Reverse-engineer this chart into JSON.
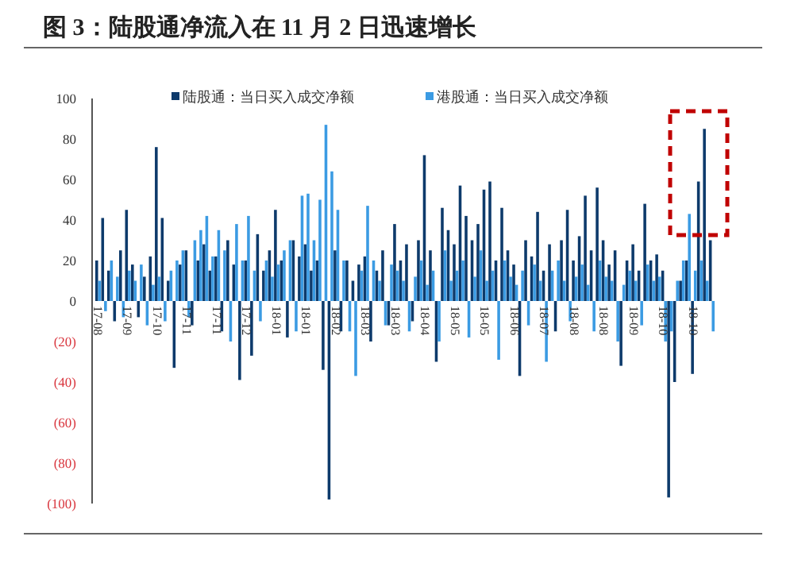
{
  "chart_data": {
    "type": "bar",
    "title": "图 3：陆股通净流入在 11 月 2 日迅速增长",
    "categories": [
      "17-08",
      null,
      null,
      null,
      null,
      "17-09",
      null,
      null,
      null,
      null,
      "17-10",
      null,
      null,
      null,
      null,
      "17-11",
      null,
      null,
      null,
      null,
      "17-11",
      null,
      null,
      null,
      null,
      "17-12",
      null,
      null,
      null,
      null,
      "18-01",
      null,
      null,
      null,
      null,
      "18-01",
      null,
      null,
      null,
      null,
      "18-02",
      null,
      null,
      null,
      null,
      "18-03",
      null,
      null,
      null,
      null,
      "18-03",
      null,
      null,
      null,
      null,
      "18-04",
      null,
      null,
      null,
      null,
      "18-05",
      null,
      null,
      null,
      null,
      "18-05",
      null,
      null,
      null,
      null,
      "18-06",
      null,
      null,
      null,
      null,
      "18-07",
      null,
      null,
      null,
      null,
      "18-08",
      null,
      null,
      null,
      null,
      "18-08",
      null,
      null,
      null,
      null,
      "18-09",
      null,
      null,
      null,
      null,
      "18-10",
      null,
      null,
      null,
      null,
      "18-10",
      null,
      null,
      null
    ],
    "series": [
      {
        "name": "陆股通：当日买入成交净额",
        "color": "#0d3a6b",
        "values": [
          20,
          41,
          15,
          -10,
          25,
          45,
          18,
          -8,
          12,
          22,
          76,
          41,
          10,
          -33,
          18,
          25,
          -12,
          20,
          28,
          15,
          22,
          -15,
          30,
          18,
          -39,
          20,
          -27,
          33,
          15,
          25,
          45,
          20,
          -18,
          30,
          22,
          28,
          15,
          20,
          -34,
          -98,
          25,
          -15,
          20,
          10,
          18,
          22,
          -20,
          15,
          25,
          -12,
          38,
          20,
          28,
          -10,
          30,
          72,
          25,
          -30,
          46,
          35,
          28,
          57,
          42,
          30,
          38,
          55,
          59,
          20,
          46,
          25,
          18,
          -37,
          30,
          22,
          44,
          15,
          28,
          -15,
          30,
          45,
          20,
          32,
          52,
          25,
          56,
          30,
          18,
          25,
          -32,
          20,
          28,
          15,
          48,
          20,
          23,
          15,
          -97,
          -40,
          10,
          20,
          -36,
          59,
          85,
          30
        ]
      },
      {
        "name": "港股通：当日买入成交净额",
        "color": "#3b9be3",
        "values": [
          10,
          -5,
          20,
          12,
          -8,
          15,
          10,
          18,
          -12,
          8,
          12,
          -10,
          15,
          20,
          25,
          -8,
          30,
          35,
          42,
          22,
          35,
          25,
          -20,
          38,
          20,
          42,
          15,
          -10,
          20,
          12,
          18,
          25,
          30,
          -15,
          52,
          53,
          30,
          50,
          87,
          64,
          45,
          20,
          -15,
          -37,
          15,
          47,
          20,
          10,
          -12,
          18,
          15,
          10,
          -15,
          12,
          20,
          8,
          15,
          -20,
          25,
          10,
          15,
          20,
          -18,
          12,
          25,
          10,
          15,
          -29,
          20,
          12,
          8,
          15,
          -12,
          18,
          10,
          -30,
          15,
          20,
          10,
          -10,
          12,
          18,
          8,
          -15,
          20,
          12,
          10,
          -20,
          8,
          15,
          10,
          -12,
          18,
          10,
          12,
          -20,
          -15,
          10,
          20,
          43,
          15,
          20,
          10,
          -15
        ]
      }
    ],
    "ylim": [
      -100,
      100
    ],
    "yticks": [
      {
        "value": -100,
        "label": "(100)"
      },
      {
        "value": -80,
        "label": "(80)"
      },
      {
        "value": -60,
        "label": "(60)"
      },
      {
        "value": -40,
        "label": "(40)"
      },
      {
        "value": -20,
        "label": "(20)"
      },
      0,
      20,
      40,
      60,
      80,
      100
    ],
    "legend": "top"
  }
}
